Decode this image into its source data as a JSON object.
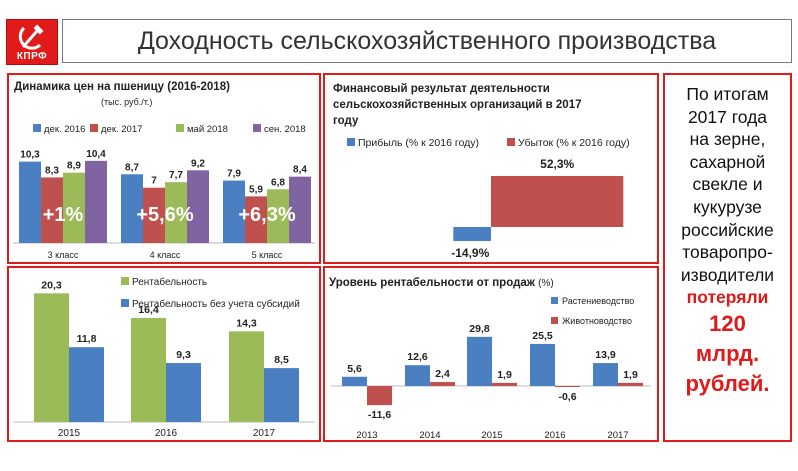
{
  "header": {
    "logo_text": "КПРФ",
    "title": "Доходность сельскохозяйственного производства"
  },
  "colors": {
    "blue": "#4a7fc1",
    "red": "#c0504d",
    "green": "#9bbb59",
    "purple": "#8064a2",
    "frame": "#e11a1a",
    "overlay_text": "#ffffff"
  },
  "side_note": {
    "lines": [
      "По итогам",
      "2017 года",
      "на зерне,",
      "сахарной",
      "свекле и",
      "кукурузе",
      "российские",
      "товаропро-",
      "изводители"
    ],
    "highlight": "потеряли",
    "amount": "120",
    "unit1": "млрд.",
    "unit2": "рублей."
  },
  "chart_data": [
    {
      "type": "bar",
      "title": "Динамика цен на пшеницу (2016-2018)",
      "subtitle": "(тыс. руб./т.)",
      "categories": [
        "3 класс",
        "4 класс",
        "5 класс"
      ],
      "series": [
        {
          "name": "дек. 2016",
          "color": "#4a7fc1",
          "values": [
            10.3,
            8.7,
            7.9
          ],
          "labels": [
            "10,3",
            "8,7",
            "7,9"
          ]
        },
        {
          "name": "дек. 2017",
          "color": "#c0504d",
          "values": [
            8.3,
            7,
            5.9
          ],
          "labels": [
            "8,3",
            "7",
            "5,9"
          ]
        },
        {
          "name": "май 2018",
          "color": "#9bbb59",
          "values": [
            8.9,
            7.7,
            6.8
          ],
          "labels": [
            "8,9",
            "7,7",
            "6,8"
          ]
        },
        {
          "name": "сен. 2018",
          "color": "#8064a2",
          "values": [
            10.4,
            9.2,
            8.4
          ],
          "labels": [
            "10,4",
            "9,2",
            "8,4"
          ]
        }
      ],
      "overlays": [
        "+1%",
        "+5,6%",
        "+6,3%"
      ],
      "ylim": [
        0,
        11
      ],
      "legend": "top",
      "grid": false
    },
    {
      "type": "bar",
      "orientation": "horizontal",
      "title": "Финансовый результат деятельности сельскохозяйственных организаций в 2017 году",
      "title_lines": [
        "Финансовый результат деятельности",
        "сельскохозяйственных организаций в 2017",
        "году"
      ],
      "series": [
        {
          "name": "Прибыль (% к 2016 году)",
          "color": "#4a7fc1",
          "value": -14.9,
          "label": "-14,9%"
        },
        {
          "name": "Убыток (% к 2016 году)",
          "color": "#c0504d",
          "value": 52.3,
          "label": "52,3%"
        }
      ],
      "xlim": [
        -30,
        52.3
      ],
      "legend": "top",
      "grid": false
    },
    {
      "type": "bar",
      "categories": [
        "2015",
        "2016",
        "2017"
      ],
      "series": [
        {
          "name": "Рентабельность",
          "color": "#9bbb59",
          "values": [
            20.3,
            16.4,
            14.3
          ],
          "labels": [
            "20,3",
            "16,4",
            "14,3"
          ]
        },
        {
          "name": "Рентабельность без учета субсидий",
          "color": "#4a7fc1",
          "values": [
            11.8,
            9.3,
            8.5
          ],
          "labels": [
            "11,8",
            "9,3",
            "8,5"
          ]
        }
      ],
      "ylim": [
        0,
        21
      ],
      "legend": "top",
      "grid": false
    },
    {
      "type": "bar",
      "title": "Уровень рентабельности от продаж",
      "title_unit": "(%)",
      "categories": [
        "2013",
        "2014",
        "2015",
        "2016",
        "2017"
      ],
      "series": [
        {
          "name": "Растениеводство",
          "color": "#4a7fc1",
          "values": [
            5.6,
            12.6,
            29.8,
            25.5,
            13.9
          ],
          "labels": [
            "5,6",
            "12,6",
            "29,8",
            "25,5",
            "13,9"
          ]
        },
        {
          "name": "Животноводство",
          "color": "#c0504d",
          "values": [
            -11.6,
            2.4,
            1.9,
            -0.6,
            1.9
          ],
          "labels": [
            "-11,6",
            "2,4",
            "1,9",
            "-0,6",
            "1,9"
          ]
        }
      ],
      "ylim": [
        -12,
        30
      ],
      "legend": "top-right",
      "grid": false
    }
  ]
}
